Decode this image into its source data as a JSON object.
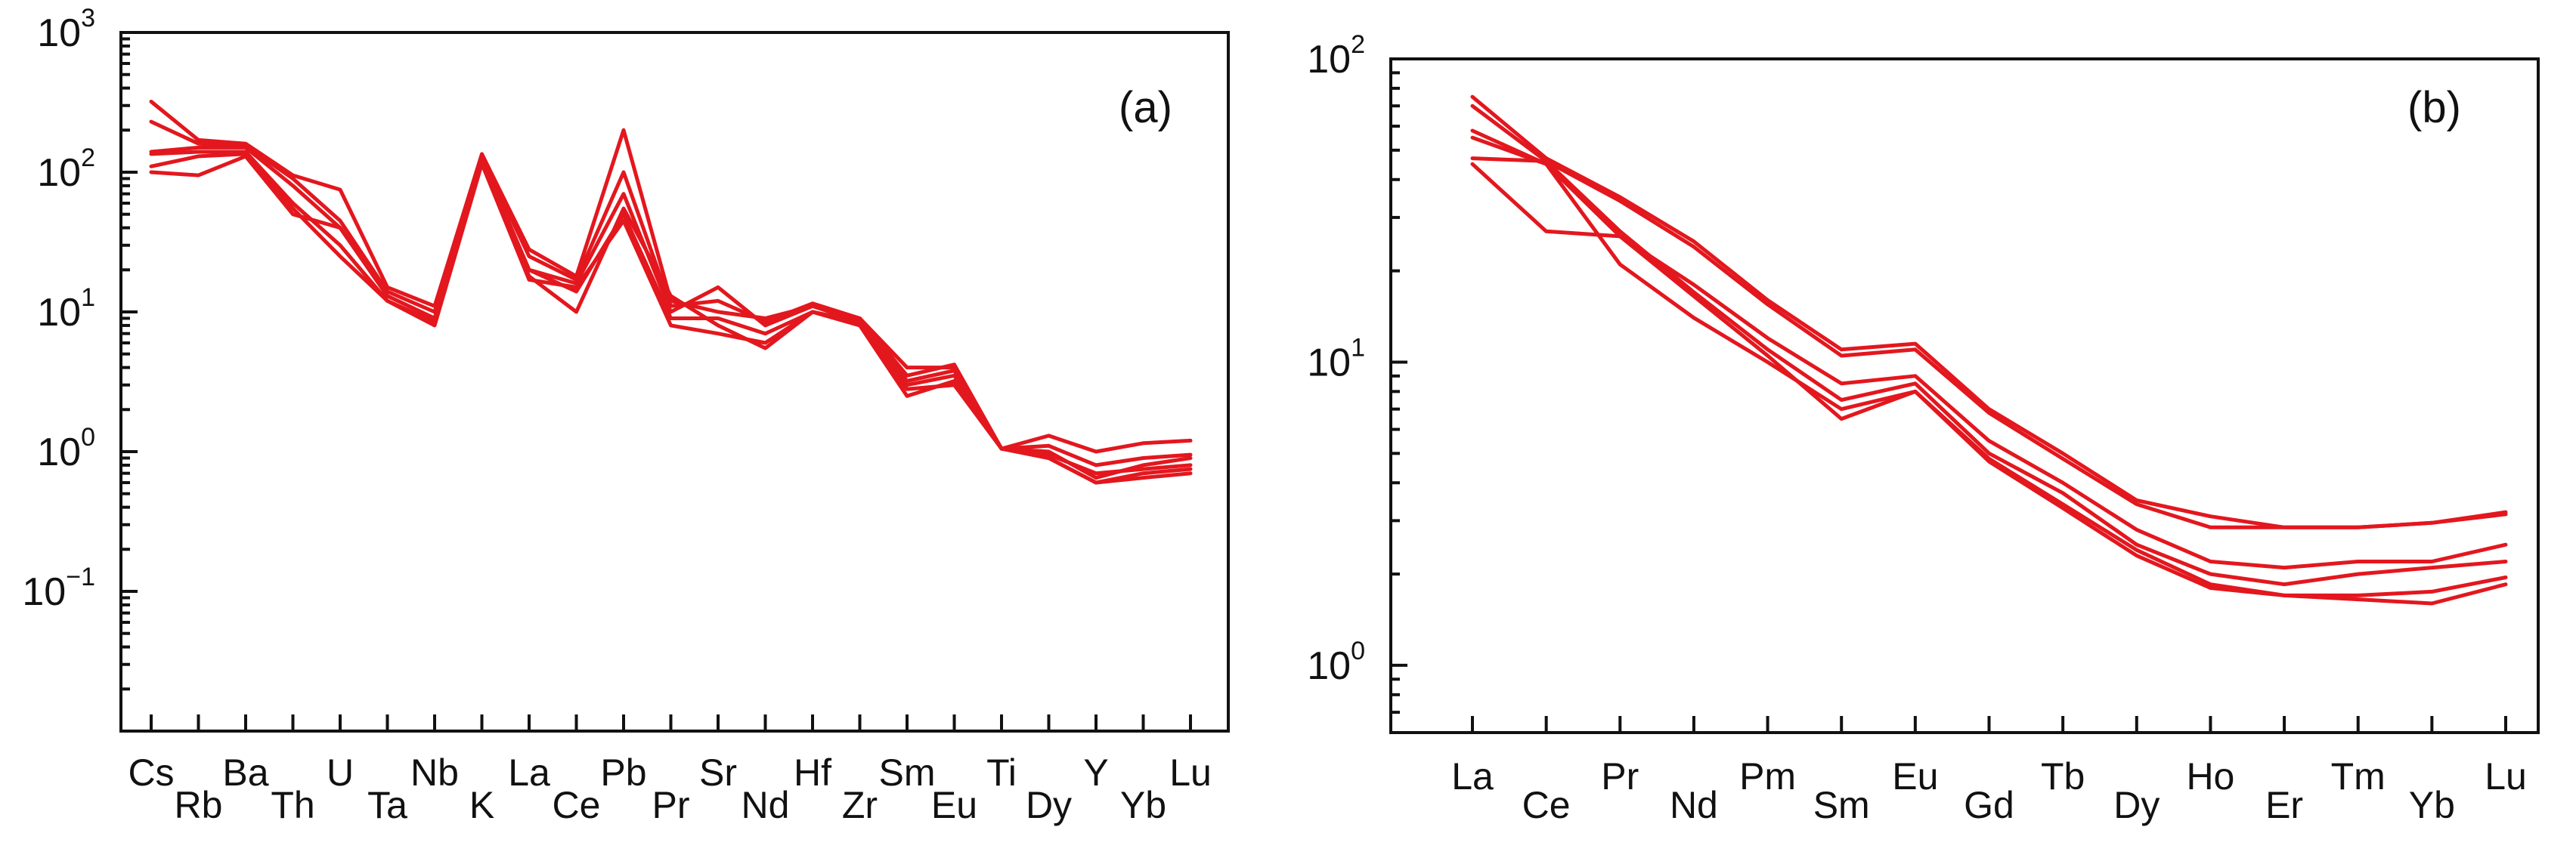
{
  "colors": {
    "series": "#e3171e",
    "axis": "#111111"
  },
  "chart_data": [
    {
      "type": "line",
      "title": "",
      "panel_label": "(a)",
      "xlabel": "",
      "ylabel": "",
      "yscale": "log",
      "ylim": [
        0.01,
        1000
      ],
      "yticks": [
        {
          "base": "10",
          "exp": "3"
        },
        {
          "base": "10",
          "exp": "2"
        },
        {
          "base": "10",
          "exp": "1"
        },
        {
          "base": "10",
          "exp": "0"
        },
        {
          "base": "10",
          "exp": "−1"
        }
      ],
      "categories": [
        "Cs",
        "Rb",
        "Ba",
        "Th",
        "U",
        "Ta",
        "Nb",
        "K",
        "La",
        "Ce",
        "Pb",
        "Pr",
        "Sr",
        "Nd",
        "Hf",
        "Zr",
        "Sm",
        "Eu",
        "Ti",
        "Dy",
        "Y",
        "Yb",
        "Lu"
      ],
      "series": [
        {
          "values": [
            320,
            170,
            160,
            95,
            75,
            15,
            11,
            135,
            28,
            18,
            200,
            12,
            10,
            9,
            11,
            9,
            4,
            4,
            1.05,
            1.3,
            1.0,
            1.15,
            1.2
          ]
        },
        {
          "values": [
            230,
            160,
            155,
            90,
            45,
            14,
            10,
            130,
            25,
            17,
            100,
            11,
            12,
            8.5,
            11.5,
            9,
            3.5,
            4.2,
            1.05,
            1.1,
            0.8,
            0.9,
            0.95
          ]
        },
        {
          "values": [
            140,
            150,
            150,
            80,
            40,
            13,
            9,
            125,
            20,
            16,
            70,
            10,
            15,
            8,
            11,
            8.5,
            3,
            3.5,
            1.05,
            1.0,
            0.65,
            0.8,
            0.9
          ]
        },
        {
          "values": [
            135,
            140,
            140,
            60,
            30,
            12,
            8.5,
            120,
            18,
            10,
            55,
            13,
            8,
            5.5,
            10,
            8,
            2.5,
            3.2,
            1.05,
            0.9,
            0.6,
            0.7,
            0.75
          ]
        },
        {
          "values": [
            110,
            130,
            135,
            55,
            25,
            12,
            8,
            115,
            17,
            15,
            45,
            8,
            7,
            6,
            10,
            8,
            2.8,
            3,
            1.05,
            0.9,
            0.6,
            0.65,
            0.7
          ]
        },
        {
          "values": [
            100,
            95,
            130,
            50,
            40,
            13,
            9,
            120,
            20,
            14,
            50,
            9,
            9,
            7,
            10,
            8.5,
            3.2,
            3.8,
            1.05,
            0.95,
            0.7,
            0.75,
            0.8
          ]
        }
      ]
    },
    {
      "type": "line",
      "title": "",
      "panel_label": "(b)",
      "xlabel": "",
      "ylabel": "",
      "yscale": "log",
      "ylim": [
        0.6,
        100
      ],
      "yticks": [
        {
          "base": "10",
          "exp": "2"
        },
        {
          "base": "10",
          "exp": "1"
        },
        {
          "base": "10",
          "exp": "0"
        }
      ],
      "categories": [
        "La",
        "Ce",
        "Pr",
        "Nd",
        "Pm",
        "Sm",
        "Eu",
        "Gd",
        "Tb",
        "Dy",
        "Ho",
        "Er",
        "Tm",
        "Yb",
        "Lu"
      ],
      "series": [
        {
          "values": [
            75,
            47,
            35,
            25,
            16,
            11,
            11.5,
            7,
            5,
            3.5,
            3.1,
            2.85,
            2.85,
            2.95,
            3.2
          ]
        },
        {
          "values": [
            70,
            46,
            34,
            24,
            15.5,
            10.5,
            11,
            6.8,
            4.8,
            3.4,
            2.85,
            2.85,
            2.85,
            2.95,
            3.15
          ]
        },
        {
          "values": [
            55,
            45,
            26,
            18,
            12,
            8.5,
            9,
            5.5,
            4,
            2.8,
            2.2,
            2.1,
            2.2,
            2.2,
            2.5
          ]
        },
        {
          "values": [
            47,
            46,
            27,
            17,
            11,
            7.5,
            8.5,
            5,
            3.7,
            2.5,
            2.0,
            1.85,
            2.0,
            2.1,
            2.2
          ]
        },
        {
          "values": [
            45,
            27,
            26,
            16.5,
            10.5,
            6.5,
            8,
            4.8,
            3.4,
            2.4,
            1.85,
            1.7,
            1.7,
            1.75,
            1.95
          ]
        },
        {
          "values": [
            58,
            45,
            21,
            14,
            10,
            7,
            8,
            4.7,
            3.3,
            2.3,
            1.8,
            1.7,
            1.65,
            1.6,
            1.85
          ]
        }
      ]
    }
  ]
}
